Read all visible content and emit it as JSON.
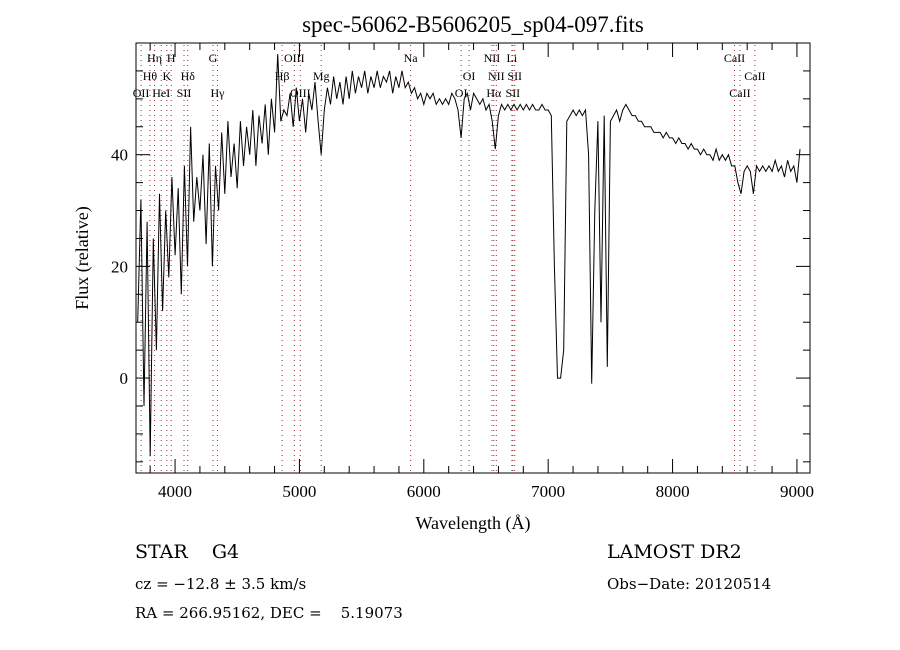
{
  "chart_data": {
    "type": "line",
    "title": "spec-56062-B5606205_sp04-097.fits",
    "xlabel": "Wavelength (Å)",
    "ylabel": "Flux (relative)",
    "xlim": [
      3686,
      9105
    ],
    "ylim": [
      -17,
      60
    ],
    "x_ticks": [
      4000,
      5000,
      6000,
      7000,
      8000,
      9000
    ],
    "x_tick_labels": [
      "4000",
      "5000",
      "6000",
      "7000",
      "8000",
      "9000"
    ],
    "y_ticks": [
      0,
      20,
      40
    ],
    "y_tick_labels": [
      "0",
      "20",
      "40"
    ],
    "grid": false,
    "series": [
      {
        "name": "spectrum",
        "x_start": 3700,
        "x_step": 25,
        "flux": [
          10,
          32,
          -5,
          28,
          -14,
          25,
          5,
          33,
          12,
          30,
          18,
          36,
          22,
          34,
          15,
          38,
          20,
          45,
          28,
          36,
          30,
          40,
          24,
          42,
          20,
          38,
          30,
          44,
          33,
          46,
          36,
          42,
          34,
          46,
          38,
          45,
          40,
          48,
          38,
          47,
          42,
          49,
          40,
          50,
          44,
          58,
          46,
          48,
          47,
          51,
          45,
          52,
          46,
          50,
          44,
          51,
          48,
          53,
          46,
          40,
          48,
          52,
          49,
          54,
          50,
          53,
          49,
          54,
          50,
          55,
          51,
          54,
          52,
          55,
          51,
          54,
          52,
          55,
          52,
          54,
          53,
          55,
          51,
          54,
          52,
          55,
          52,
          53,
          51,
          52,
          50,
          51,
          49,
          51,
          50,
          51,
          49,
          50,
          49,
          50,
          49,
          51,
          50,
          48,
          43,
          50,
          51,
          48,
          51,
          50,
          49,
          50,
          48,
          49,
          46,
          41,
          47,
          49,
          48,
          49,
          48,
          49,
          48,
          49,
          48,
          49,
          48,
          49,
          48,
          48,
          49,
          48,
          48,
          47,
          20,
          0,
          0,
          5,
          46,
          47,
          48,
          47,
          48,
          47,
          48,
          40,
          -1,
          30,
          46,
          10,
          47,
          2,
          46,
          47,
          48,
          46,
          48,
          49,
          48,
          47,
          47,
          46,
          46,
          45,
          45,
          45,
          44,
          44,
          44,
          43,
          44,
          43,
          43,
          42,
          43,
          42,
          42,
          41,
          42,
          41,
          41,
          40,
          41,
          40,
          40,
          39,
          41,
          39,
          40,
          39,
          40,
          38,
          38,
          35,
          33,
          37,
          38,
          37,
          33,
          38,
          37,
          38,
          37,
          38,
          37,
          39,
          37,
          38,
          36,
          39,
          37,
          38,
          35,
          41
        ]
      }
    ],
    "line_markers": [
      {
        "label": "OII",
        "wavelength": 3727,
        "row": 3
      },
      {
        "label": "Hθ",
        "wavelength": 3798,
        "row": 2
      },
      {
        "label": "Hη",
        "wavelength": 3835,
        "row": 1
      },
      {
        "label": "HeI",
        "wavelength": 3889,
        "row": 3
      },
      {
        "label": "K",
        "wavelength": 3934,
        "row": 2
      },
      {
        "label": "H",
        "wavelength": 3969,
        "row": 1
      },
      {
        "label": "SII",
        "wavelength": 4072,
        "row": 3
      },
      {
        "label": "Hδ",
        "wavelength": 4102,
        "row": 2
      },
      {
        "label": "G",
        "wavelength": 4305,
        "row": 1
      },
      {
        "label": "Hγ",
        "wavelength": 4341,
        "row": 3
      },
      {
        "label": "Hβ",
        "wavelength": 4861,
        "row": 2
      },
      {
        "label": "OIII",
        "wavelength": 4959,
        "row": 1
      },
      {
        "label": "OIII",
        "wavelength": 5007,
        "row": 3
      },
      {
        "label": "Mg",
        "wavelength": 5175,
        "row": 2
      },
      {
        "label": "Na",
        "wavelength": 5894,
        "row": 1
      },
      {
        "label": "OI",
        "wavelength": 6300,
        "row": 3
      },
      {
        "label": "OI",
        "wavelength": 6364,
        "row": 2
      },
      {
        "label": "NII",
        "wavelength": 6548,
        "row": 1
      },
      {
        "label": "Hα",
        "wavelength": 6563,
        "row": 3
      },
      {
        "label": "NII",
        "wavelength": 6583,
        "row": 2
      },
      {
        "label": "Li",
        "wavelength": 6708,
        "row": 1
      },
      {
        "label": "SII",
        "wavelength": 6716,
        "row": 3
      },
      {
        "label": "SII",
        "wavelength": 6731,
        "row": 2
      },
      {
        "label": "CaII",
        "wavelength": 8498,
        "row": 1
      },
      {
        "label": "CaII",
        "wavelength": 8542,
        "row": 3
      },
      {
        "label": "CaII",
        "wavelength": 8662,
        "row": 2
      }
    ]
  },
  "info": {
    "object_class": "STAR",
    "subclass": "G4",
    "redshift": "cz = −12.8 ± 3.5 km/s",
    "coords": "RA = 266.95162, DEC =    5.19073",
    "survey": "LAMOST DR2",
    "obs_date": "Obs−Date: 20120514"
  }
}
